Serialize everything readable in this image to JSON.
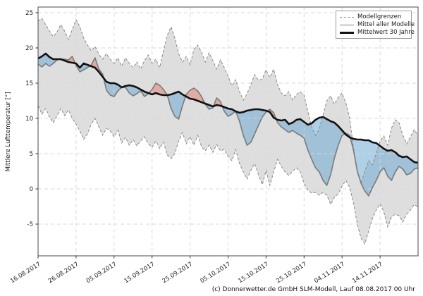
{
  "legend": {
    "items": [
      {
        "label": "Modellgrenzen",
        "style": "dashed-gray"
      },
      {
        "label": "Mittel aller Modelle",
        "style": "solid-gray"
      },
      {
        "label": "Mittelwert 30 Jahre",
        "style": "solid-black-thick"
      }
    ]
  },
  "footer": {
    "copyright": "(c) Donnerwetter.de GmbH SLM-Modell, Lauf 08.08.2017 00 Uhr"
  },
  "colors": {
    "background": "#ffffff",
    "band_fill": "#dedede",
    "band_edge": "#8a8a8a",
    "grid": "#d8d8d8",
    "spine": "#4a4a4a",
    "model_mean_line": "#7a7a7a",
    "mean_30y_line": "#111111",
    "colder_fill": "#6eaad4",
    "warmer_fill": "#e48275",
    "fill_alpha": 0.55
  },
  "chart_data": {
    "type": "line",
    "title": "",
    "xlabel": "",
    "ylabel": "Mittlere Lufttemperatur [°]",
    "grid": true,
    "legend_position": "upper right",
    "ylim": [
      -9.5,
      25.8
    ],
    "yticks": [
      -5,
      0,
      5,
      10,
      15,
      20,
      25
    ],
    "x_unit": "days since first date",
    "x_range_days": [
      0,
      100
    ],
    "x_tick_days": [
      0,
      10,
      20,
      30,
      40,
      50,
      60,
      70,
      80,
      90
    ],
    "x_tick_labels": [
      "16.08.2017",
      "26.08.2017",
      "05.09.2017",
      "15.09.2017",
      "25.09.2017",
      "05.10.2017",
      "15.10.2017",
      "25.10.2017",
      "04.11.2017",
      "14.11.2017"
    ],
    "series": [
      {
        "name": "Modellgrenzen (oben)",
        "role": "upper_bound",
        "values": [
          23.8,
          24.2,
          23.3,
          22.4,
          21.6,
          22.3,
          23.3,
          22.4,
          21.2,
          22.6,
          24.0,
          23.0,
          21.4,
          20.4,
          19.6,
          20.2,
          19.1,
          18.4,
          19.2,
          18.4,
          17.8,
          18.6,
          17.4,
          18.6,
          17.8,
          17.2,
          18.0,
          17.0,
          18.2,
          19.0,
          17.8,
          18.4,
          17.2,
          19.6,
          21.8,
          23.0,
          21.4,
          19.2,
          18.0,
          18.8,
          17.6,
          19.8,
          20.4,
          19.4,
          18.0,
          19.3,
          18.2,
          17.0,
          18.3,
          17.2,
          16.0,
          14.6,
          15.5,
          13.8,
          12.6,
          13.5,
          14.8,
          16.2,
          15.4,
          15.6,
          16.9,
          15.8,
          17.0,
          14.8,
          13.6,
          13.2,
          13.8,
          12.6,
          13.4,
          13.8,
          13.3,
          11.0,
          8.8,
          7.6,
          8.5,
          10.5,
          12.5,
          13.2,
          12.0,
          13.0,
          13.6,
          12.2,
          10.0,
          5.8,
          2.6,
          0.8,
          2.5,
          4.0,
          3.4,
          5.0,
          6.8,
          7.5,
          6.2,
          8.6,
          9.8,
          9.4,
          7.6,
          6.4,
          7.4,
          8.4,
          7.6
        ]
      },
      {
        "name": "Modellgrenzen (unten)",
        "role": "lower_bound",
        "values": [
          11.8,
          10.6,
          11.4,
          10.2,
          9.4,
          10.4,
          11.4,
          10.4,
          11.2,
          10.0,
          9.2,
          8.2,
          7.0,
          7.8,
          9.2,
          10.0,
          8.8,
          7.6,
          8.6,
          8.2,
          7.4,
          8.3,
          6.5,
          7.3,
          6.2,
          7.0,
          6.1,
          6.8,
          7.4,
          6.4,
          5.9,
          6.8,
          5.7,
          6.6,
          4.8,
          4.3,
          5.0,
          6.8,
          8.0,
          6.4,
          7.4,
          6.2,
          7.6,
          6.0,
          5.4,
          6.2,
          5.2,
          6.3,
          5.4,
          5.6,
          4.6,
          4.0,
          5.6,
          3.6,
          2.4,
          1.4,
          2.6,
          3.6,
          2.0,
          0.6,
          2.6,
          0.5,
          2.4,
          4.2,
          3.2,
          2.4,
          1.9,
          2.5,
          3.0,
          2.4,
          0.8,
          -0.2,
          -0.6,
          -0.5,
          -0.9,
          -0.5,
          -0.9,
          -2.2,
          -1.2,
          -0.7,
          0.4,
          1.2,
          0.2,
          -2.0,
          -5.0,
          -7.0,
          -7.8,
          -6.0,
          -4.2,
          -3.0,
          -2.1,
          -3.3,
          -5.4,
          -4.0,
          -3.6,
          -3.8,
          -4.7,
          -3.6,
          -3.0,
          -2.2,
          -2.6
        ]
      },
      {
        "name": "Mittel aller Modelle",
        "role": "model_mean",
        "values": [
          17.7,
          17.3,
          17.8,
          17.4,
          17.8,
          18.3,
          18.4,
          18.4,
          18.3,
          18.8,
          17.5,
          16.6,
          16.9,
          17.2,
          17.6,
          18.6,
          17.0,
          16.3,
          14.0,
          13.3,
          13.1,
          13.9,
          14.4,
          14.4,
          13.6,
          13.2,
          13.5,
          13.9,
          13.1,
          13.5,
          14.1,
          15.0,
          14.7,
          14.1,
          13.3,
          11.4,
          10.3,
          9.9,
          11.8,
          13.4,
          14.0,
          14.3,
          13.9,
          13.1,
          12.0,
          11.3,
          11.5,
          12.9,
          12.4,
          11.0,
          10.3,
          10.6,
          11.0,
          9.6,
          7.6,
          6.2,
          6.6,
          7.8,
          9.0,
          10.2,
          10.9,
          11.3,
          10.8,
          9.4,
          8.8,
          8.4,
          8.0,
          8.3,
          7.9,
          7.6,
          7.2,
          5.5,
          4.2,
          3.0,
          2.4,
          1.2,
          0.5,
          2.0,
          4.4,
          6.2,
          7.6,
          7.9,
          7.6,
          5.5,
          2.5,
          0.8,
          -0.3,
          -1.0,
          0.2,
          1.2,
          2.4,
          3.0,
          1.8,
          1.2,
          2.4,
          3.2,
          2.8,
          2.0,
          2.2,
          2.8,
          3.0
        ]
      },
      {
        "name": "Mittelwert 30 Jahre",
        "role": "mean_30y",
        "values": [
          18.5,
          18.8,
          19.2,
          18.7,
          18.4,
          18.4,
          18.4,
          18.2,
          18.0,
          17.9,
          17.8,
          17.2,
          17.8,
          17.6,
          17.4,
          17.2,
          16.6,
          15.9,
          15.2,
          15.0,
          15.0,
          14.8,
          14.4,
          14.6,
          14.7,
          14.6,
          14.4,
          14.1,
          13.8,
          13.6,
          13.4,
          13.6,
          13.4,
          13.3,
          13.3,
          13.4,
          13.6,
          13.8,
          13.4,
          13.1,
          12.8,
          12.7,
          12.5,
          12.3,
          12.1,
          11.9,
          11.7,
          11.9,
          11.8,
          11.6,
          11.4,
          11.3,
          11.0,
          10.8,
          10.9,
          11.1,
          11.2,
          11.3,
          11.3,
          11.2,
          11.1,
          10.9,
          10.1,
          9.8,
          9.7,
          9.8,
          9.2,
          9.4,
          9.8,
          9.9,
          9.5,
          9.1,
          9.3,
          9.8,
          10.1,
          10.2,
          9.9,
          9.6,
          9.4,
          8.9,
          8.3,
          7.7,
          7.3,
          7.1,
          7.0,
          7.0,
          6.9,
          6.9,
          6.6,
          6.5,
          6.1,
          5.7,
          5.4,
          5.5,
          5.2,
          4.7,
          4.5,
          4.6,
          4.2,
          3.8,
          3.7
        ]
      }
    ]
  }
}
